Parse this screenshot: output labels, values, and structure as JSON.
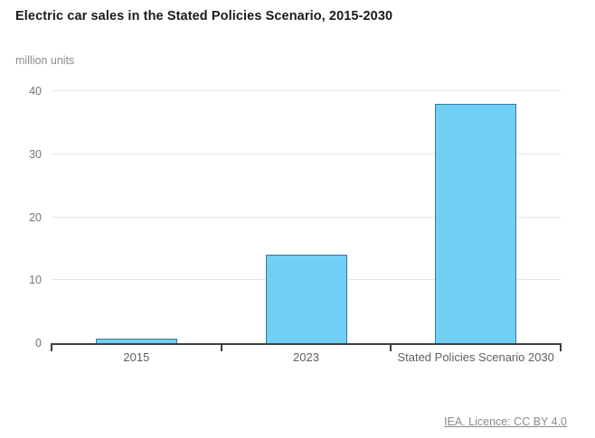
{
  "header": {
    "title": "Electric car sales in the Stated Policies Scenario, 2015-2030",
    "units_label": "million units"
  },
  "chart_data": {
    "type": "bar",
    "categories": [
      "2015",
      "2023",
      "Stated Policies Scenario 2030"
    ],
    "values": [
      0.7,
      14,
      38
    ],
    "title": "Electric car sales in the Stated Policies Scenario, 2015-2030",
    "xlabel": "",
    "ylabel": "million units",
    "ylim": [
      0,
      40
    ],
    "yticks": [
      0,
      10,
      20,
      30,
      40
    ],
    "grid": true,
    "legend": false,
    "bar_fill_color": "#72CFF4",
    "bar_border_color": "#36789F"
  },
  "footer": {
    "license_label": "IEA. Licence: CC BY 4.0"
  }
}
